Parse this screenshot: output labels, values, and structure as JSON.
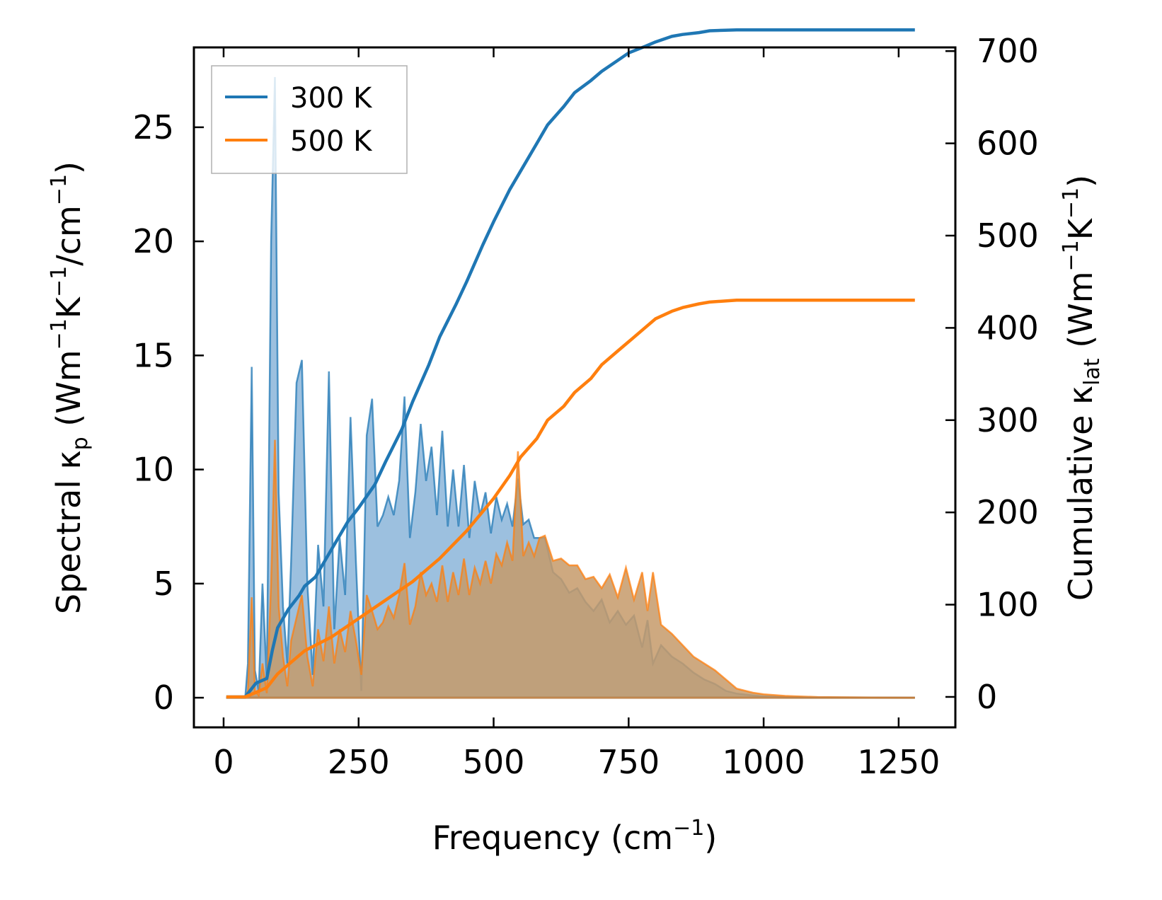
{
  "chart_data": {
    "type": "line",
    "title": "",
    "xlabel": "Frequency (cm",
    "xlabel_sup": "−1",
    "xlabel_end": ")",
    "ylabel_left": {
      "main": "Spectral κ",
      "sub": "p",
      "unit_open": " (Wm",
      "sup1": "−1",
      "mid": "K",
      "sup2": "−1",
      "tail": "/cm",
      "sup3": "−1",
      "close": ")"
    },
    "ylabel_right": {
      "main": "Cumulative κ",
      "sub": "lat",
      "unit_open": " (Wm",
      "sup1": "−1",
      "mid": "K",
      "sup2": "−1",
      "close": ")"
    },
    "xlim": [
      -55,
      1355
    ],
    "ylim_left": [
      -1.3,
      28.5
    ],
    "ylim_right": [
      -33,
      704
    ],
    "xticks": [
      0,
      250,
      500,
      750,
      1000,
      1250
    ],
    "xtick_labels": [
      "0",
      "250",
      "500",
      "750",
      "1000",
      "1250"
    ],
    "yticks_left": [
      0,
      5,
      10,
      15,
      20,
      25
    ],
    "ytick_labels_left": [
      "0",
      "5",
      "10",
      "15",
      "20",
      "25"
    ],
    "yticks_right": [
      0,
      100,
      200,
      300,
      400,
      500,
      600,
      700
    ],
    "ytick_labels_right": [
      "0",
      "100",
      "200",
      "300",
      "400",
      "500",
      "600",
      "700"
    ],
    "legend": {
      "position": "top-left",
      "entries": [
        "300 K",
        "500 K"
      ]
    },
    "colors": {
      "series_300K": "#1f77b4",
      "series_500K": "#ff7f0e",
      "fill_300K": "#8bb5d9",
      "fill_500K": "#c69a6a"
    },
    "series": [
      {
        "name": "300 K",
        "axis": "left",
        "kind": "spectral",
        "x": [
          5,
          40,
          45,
          52,
          58,
          65,
          72,
          80,
          88,
          95,
          102,
          110,
          118,
          125,
          135,
          145,
          155,
          165,
          175,
          185,
          195,
          205,
          215,
          225,
          235,
          245,
          255,
          265,
          275,
          285,
          295,
          305,
          315,
          325,
          335,
          345,
          355,
          365,
          375,
          385,
          395,
          405,
          415,
          425,
          435,
          445,
          455,
          465,
          475,
          485,
          495,
          505,
          515,
          525,
          535,
          545,
          555,
          565,
          575,
          585,
          595,
          610,
          625,
          640,
          655,
          670,
          685,
          700,
          715,
          730,
          745,
          760,
          775,
          785,
          795,
          810,
          830,
          850,
          870,
          890,
          910,
          930,
          950,
          980,
          1000,
          1040,
          1100,
          1200,
          1280
        ],
        "values": [
          0,
          0,
          1.5,
          14.5,
          1.2,
          0.3,
          5,
          0.8,
          20,
          27.2,
          9,
          4,
          1.5,
          6,
          13.8,
          14.8,
          5,
          1,
          6.7,
          4,
          14.3,
          3,
          7,
          4.5,
          12.3,
          6,
          0.3,
          11.5,
          13.1,
          7.5,
          8,
          8.8,
          8,
          9.5,
          13.2,
          7,
          9,
          12,
          9.5,
          11,
          8,
          11.7,
          7.5,
          10,
          7.5,
          10.2,
          7,
          9.5,
          8,
          9,
          7.2,
          8.8,
          7.8,
          8.5,
          7.5,
          9.6,
          7.6,
          7.8,
          7,
          7,
          7,
          5.5,
          5.2,
          4.6,
          4.8,
          4.2,
          3.8,
          4.3,
          3.3,
          3.8,
          3.2,
          3.6,
          2.2,
          3.4,
          1.5,
          2.3,
          1.8,
          1.5,
          1.1,
          0.8,
          0.6,
          0.3,
          0.18,
          0.1,
          0.06,
          0.02,
          0.01,
          0.005,
          0
        ]
      },
      {
        "name": "500 K",
        "axis": "left",
        "kind": "spectral",
        "x": [
          5,
          40,
          45,
          52,
          58,
          65,
          72,
          80,
          88,
          95,
          102,
          110,
          118,
          125,
          135,
          145,
          155,
          165,
          175,
          185,
          195,
          205,
          215,
          225,
          235,
          245,
          255,
          265,
          275,
          285,
          295,
          305,
          315,
          325,
          335,
          345,
          355,
          365,
          375,
          385,
          395,
          405,
          415,
          425,
          435,
          445,
          455,
          465,
          475,
          485,
          495,
          505,
          515,
          525,
          535,
          545,
          555,
          565,
          575,
          585,
          595,
          610,
          625,
          640,
          655,
          670,
          685,
          700,
          715,
          730,
          745,
          760,
          775,
          785,
          795,
          810,
          830,
          850,
          870,
          890,
          910,
          930,
          950,
          980,
          1000,
          1040,
          1100,
          1200,
          1280
        ],
        "values": [
          0,
          0,
          0.3,
          4.4,
          0.3,
          0.1,
          1.5,
          0.2,
          5,
          11.3,
          4,
          1.8,
          0.5,
          2.5,
          3.5,
          4.5,
          1.8,
          0.5,
          3,
          1.6,
          4,
          1.5,
          3,
          2,
          3.8,
          2.5,
          1,
          4.5,
          3.8,
          3,
          3.3,
          4,
          3.5,
          4.5,
          5.9,
          3.2,
          4,
          5.5,
          4.5,
          5,
          4.2,
          5.8,
          4.2,
          5.5,
          4.5,
          6.1,
          4.5,
          5.7,
          5,
          6,
          5,
          6.3,
          5.8,
          6.8,
          6,
          10.8,
          6.2,
          6.8,
          6.2,
          7,
          7.1,
          6,
          6.1,
          5.8,
          5.8,
          5.2,
          5.3,
          4.8,
          5.4,
          4.4,
          5.7,
          4.3,
          5.5,
          3.8,
          5.5,
          3.2,
          2.8,
          2.3,
          1.8,
          1.5,
          1.2,
          0.8,
          0.4,
          0.22,
          0.15,
          0.08,
          0.03,
          0.01,
          0
        ]
      },
      {
        "name": "300 K cumulative",
        "axis": "right",
        "kind": "cumulative",
        "x": [
          5,
          40,
          60,
          80,
          90,
          100,
          120,
          140,
          150,
          170,
          200,
          230,
          250,
          280,
          300,
          330,
          350,
          380,
          400,
          430,
          450,
          480,
          500,
          530,
          550,
          580,
          600,
          630,
          650,
          680,
          700,
          730,
          750,
          780,
          800,
          830,
          850,
          880,
          900,
          950,
          1000,
          1100,
          1280
        ],
        "values": [
          0,
          0,
          15,
          20,
          50,
          75,
          95,
          110,
          120,
          130,
          160,
          190,
          205,
          230,
          255,
          290,
          320,
          360,
          390,
          425,
          450,
          490,
          515,
          550,
          570,
          600,
          620,
          640,
          655,
          668,
          678,
          690,
          698,
          705,
          710,
          716,
          718,
          720,
          722,
          723,
          723,
          723,
          723
        ]
      },
      {
        "name": "500 K cumulative",
        "axis": "right",
        "kind": "cumulative",
        "x": [
          5,
          40,
          60,
          80,
          100,
          120,
          150,
          200,
          250,
          300,
          350,
          400,
          450,
          500,
          530,
          550,
          580,
          600,
          630,
          650,
          680,
          700,
          730,
          750,
          780,
          800,
          830,
          850,
          880,
          900,
          950,
          1000,
          1100,
          1280
        ],
        "values": [
          0,
          0,
          5,
          10,
          25,
          35,
          50,
          65,
          85,
          105,
          125,
          150,
          180,
          215,
          240,
          260,
          280,
          300,
          315,
          330,
          345,
          360,
          375,
          385,
          400,
          410,
          418,
          422,
          426,
          428,
          430,
          430,
          430,
          430
        ]
      }
    ]
  }
}
